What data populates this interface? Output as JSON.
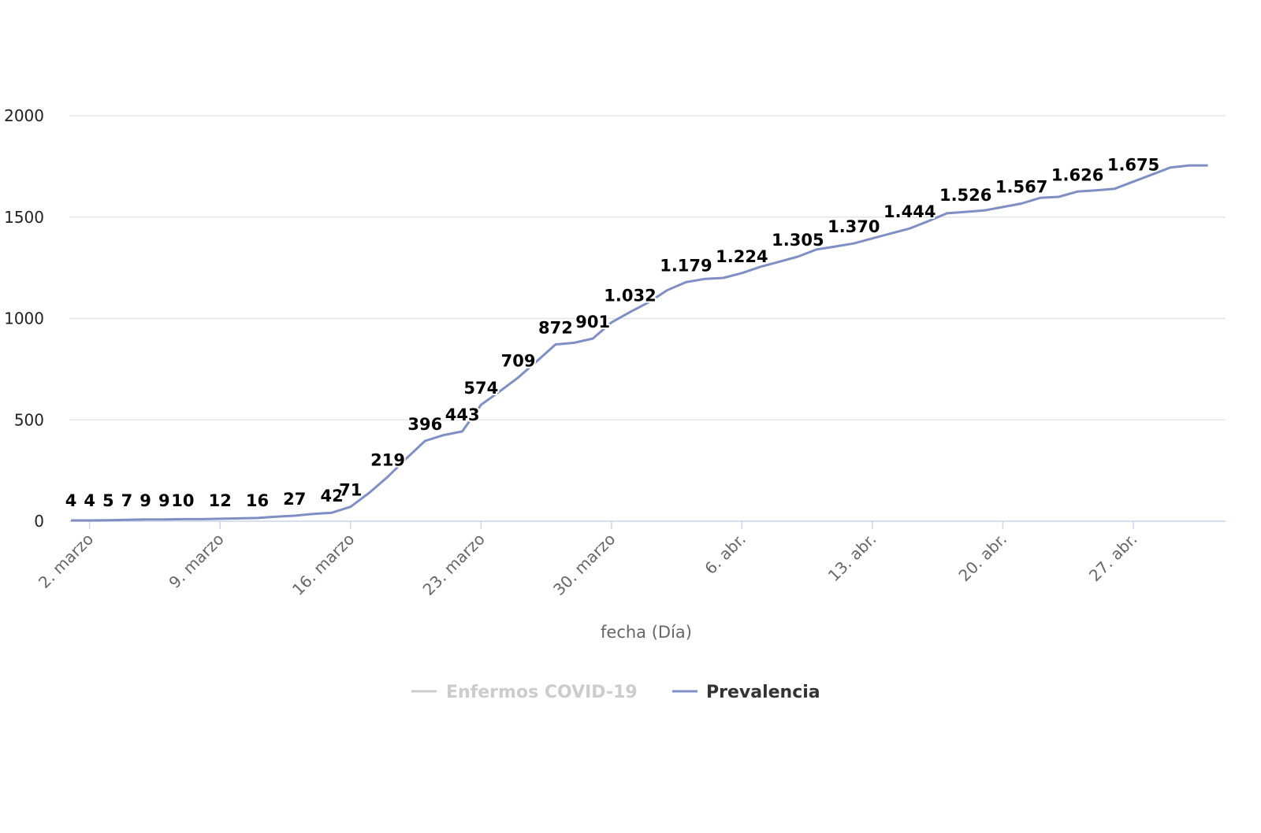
{
  "chart_data": {
    "type": "line",
    "xlabel": "fecha (Día)",
    "ylabel": "",
    "ylim": [
      0,
      2000
    ],
    "y_ticks": [
      "0",
      "500",
      "1000",
      "1500",
      "2000"
    ],
    "x_date_range": [
      "2020-03-01",
      "2020-04-30"
    ],
    "x_ticks": [
      {
        "date": "2020-03-02",
        "label": "2. marzo"
      },
      {
        "date": "2020-03-09",
        "label": "9. marzo"
      },
      {
        "date": "2020-03-16",
        "label": "16. marzo"
      },
      {
        "date": "2020-03-23",
        "label": "23. marzo"
      },
      {
        "date": "2020-03-30",
        "label": "30. marzo"
      },
      {
        "date": "2020-04-06",
        "label": "6. abr."
      },
      {
        "date": "2020-04-13",
        "label": "13. abr."
      },
      {
        "date": "2020-04-20",
        "label": "20. abr."
      },
      {
        "date": "2020-04-27",
        "label": "27. abr."
      }
    ],
    "grid": true,
    "legend": {
      "placement": "bottom-center",
      "items": [
        {
          "name": "Enfermos COVID-19",
          "visible": false,
          "color": "#cccccc"
        },
        {
          "name": "Prevalencia",
          "visible": true,
          "color": "#7f8fc4"
        }
      ]
    },
    "series": [
      {
        "name": "Prevalencia",
        "color": "#7f8fc4",
        "points": [
          {
            "x": "2020-03-01",
            "y": 4,
            "label": "4"
          },
          {
            "x": "2020-03-02",
            "y": 4,
            "label": "4"
          },
          {
            "x": "2020-03-03",
            "y": 5,
            "label": "5"
          },
          {
            "x": "2020-03-04",
            "y": 7,
            "label": "7"
          },
          {
            "x": "2020-03-05",
            "y": 9,
            "label": "9"
          },
          {
            "x": "2020-03-06",
            "y": 9,
            "label": "9"
          },
          {
            "x": "2020-03-07",
            "y": 10,
            "label": "10"
          },
          {
            "x": "2020-03-08",
            "y": 10
          },
          {
            "x": "2020-03-09",
            "y": 12,
            "label": "12"
          },
          {
            "x": "2020-03-10",
            "y": 14
          },
          {
            "x": "2020-03-11",
            "y": 16,
            "label": "16"
          },
          {
            "x": "2020-03-12",
            "y": 22
          },
          {
            "x": "2020-03-13",
            "y": 27,
            "label": "27"
          },
          {
            "x": "2020-03-14",
            "y": 36
          },
          {
            "x": "2020-03-15",
            "y": 42,
            "label": "42"
          },
          {
            "x": "2020-03-16",
            "y": 71,
            "label": "71"
          },
          {
            "x": "2020-03-17",
            "y": 140
          },
          {
            "x": "2020-03-18",
            "y": 219,
            "label": "219"
          },
          {
            "x": "2020-03-19",
            "y": 310
          },
          {
            "x": "2020-03-20",
            "y": 396,
            "label": "396"
          },
          {
            "x": "2020-03-21",
            "y": 425
          },
          {
            "x": "2020-03-22",
            "y": 443,
            "label": "443"
          },
          {
            "x": "2020-03-23",
            "y": 574,
            "label": "574"
          },
          {
            "x": "2020-03-24",
            "y": 640
          },
          {
            "x": "2020-03-25",
            "y": 709,
            "label": "709"
          },
          {
            "x": "2020-03-26",
            "y": 790
          },
          {
            "x": "2020-03-27",
            "y": 872,
            "label": "872"
          },
          {
            "x": "2020-03-28",
            "y": 880
          },
          {
            "x": "2020-03-29",
            "y": 901,
            "label": "901"
          },
          {
            "x": "2020-03-30",
            "y": 980
          },
          {
            "x": "2020-03-31",
            "y": 1032,
            "label": "1.032"
          },
          {
            "x": "2020-04-01",
            "y": 1080
          },
          {
            "x": "2020-04-02",
            "y": 1140
          },
          {
            "x": "2020-04-03",
            "y": 1179,
            "label": "1.179"
          },
          {
            "x": "2020-04-04",
            "y": 1195
          },
          {
            "x": "2020-04-05",
            "y": 1200
          },
          {
            "x": "2020-04-06",
            "y": 1224,
            "label": "1.224"
          },
          {
            "x": "2020-04-07",
            "y": 1255
          },
          {
            "x": "2020-04-08",
            "y": 1280
          },
          {
            "x": "2020-04-09",
            "y": 1305,
            "label": "1.305"
          },
          {
            "x": "2020-04-10",
            "y": 1340
          },
          {
            "x": "2020-04-11",
            "y": 1355
          },
          {
            "x": "2020-04-12",
            "y": 1370,
            "label": "1.370"
          },
          {
            "x": "2020-04-13",
            "y": 1395
          },
          {
            "x": "2020-04-14",
            "y": 1420
          },
          {
            "x": "2020-04-15",
            "y": 1444,
            "label": "1.444"
          },
          {
            "x": "2020-04-16",
            "y": 1480
          },
          {
            "x": "2020-04-17",
            "y": 1519
          },
          {
            "x": "2020-04-18",
            "y": 1526,
            "label": "1.526"
          },
          {
            "x": "2020-04-19",
            "y": 1533
          },
          {
            "x": "2020-04-20",
            "y": 1550
          },
          {
            "x": "2020-04-21",
            "y": 1567,
            "label": "1.567"
          },
          {
            "x": "2020-04-22",
            "y": 1595
          },
          {
            "x": "2020-04-23",
            "y": 1600
          },
          {
            "x": "2020-04-24",
            "y": 1626,
            "label": "1.626"
          },
          {
            "x": "2020-04-25",
            "y": 1632
          },
          {
            "x": "2020-04-26",
            "y": 1640
          },
          {
            "x": "2020-04-27",
            "y": 1675,
            "label": "1.675"
          },
          {
            "x": "2020-04-28",
            "y": 1710
          },
          {
            "x": "2020-04-29",
            "y": 1745
          },
          {
            "x": "2020-04-30",
            "y": 1755
          },
          {
            "x": "2020-05-01",
            "y": 1755
          }
        ]
      }
    ]
  }
}
